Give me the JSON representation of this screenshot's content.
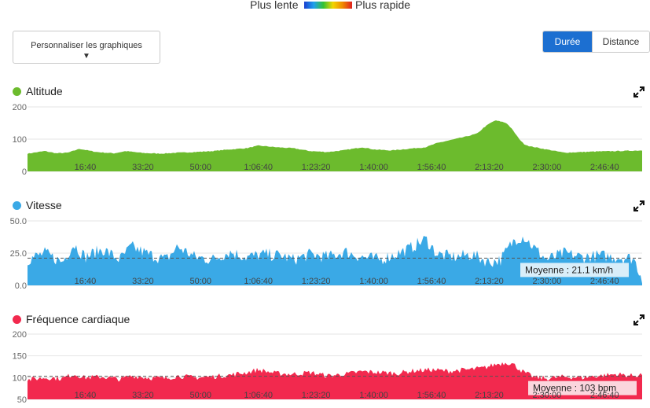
{
  "legend": {
    "slow": "Plus lente",
    "fast": "Plus rapide"
  },
  "customize_button": {
    "label": "Personnaliser les graphiques",
    "arrow": "▼"
  },
  "toggle": {
    "duration": "Durée",
    "distance": "Distance",
    "active": "duration"
  },
  "colors": {
    "altitude": "#6cbb2d",
    "speed": "#3aa9e6",
    "heart_rate": "#f2294e",
    "toggle_active": "#1c6fd1"
  },
  "chart_data": [
    {
      "type": "area",
      "name": "Altitude",
      "x_ticks": [
        "16:40",
        "33:20",
        "50:00",
        "1:06:40",
        "1:23:20",
        "1:40:00",
        "1:56:40",
        "2:13:20",
        "2:30:00",
        "2:46:40"
      ],
      "x_tick_seconds": [
        1000,
        2000,
        3000,
        4000,
        5000,
        6000,
        7000,
        8000,
        9000,
        10000
      ],
      "x_range_seconds": [
        0,
        10650
      ],
      "y_ticks": [
        "0",
        "100",
        "200"
      ],
      "y_tick_values": [
        0,
        100,
        200
      ],
      "ylim": [
        0,
        200
      ],
      "grid": true,
      "x": [
        0,
        300,
        500,
        700,
        900,
        1200,
        1500,
        1700,
        2000,
        2300,
        2600,
        2900,
        3200,
        3500,
        3800,
        4000,
        4300,
        4600,
        4900,
        5200,
        5500,
        5800,
        6000,
        6300,
        6600,
        6900,
        7100,
        7400,
        7600,
        7800,
        7900,
        8000,
        8100,
        8200,
        8300,
        8400,
        8500,
        8600,
        8700,
        9000,
        9300,
        9600,
        9900,
        10200,
        10650
      ],
      "values": [
        55,
        63,
        56,
        58,
        70,
        60,
        56,
        63,
        57,
        55,
        58,
        60,
        63,
        68,
        72,
        80,
        75,
        72,
        63,
        60,
        66,
        75,
        68,
        65,
        70,
        75,
        88,
        100,
        108,
        118,
        135,
        148,
        158,
        155,
        150,
        130,
        105,
        85,
        78,
        68,
        58,
        60,
        62,
        63,
        65
      ]
    },
    {
      "type": "area",
      "name": "Vitesse",
      "x_ticks": [
        "16:40",
        "33:20",
        "50:00",
        "1:06:40",
        "1:23:20",
        "1:40:00",
        "1:56:40",
        "2:13:20",
        "2:30:00",
        "2:46:40"
      ],
      "x_tick_seconds": [
        1000,
        2000,
        3000,
        4000,
        5000,
        6000,
        7000,
        8000,
        9000,
        10000
      ],
      "x_range_seconds": [
        0,
        10650
      ],
      "y_ticks": [
        "0.0",
        "25.0",
        "50.0"
      ],
      "y_tick_values": [
        0,
        25,
        50
      ],
      "ylim": [
        0,
        50
      ],
      "grid": true,
      "average": {
        "value": 21.1,
        "label": "Moyenne : 21.1 km/h"
      },
      "x": [
        0,
        300,
        600,
        800,
        1000,
        1300,
        1600,
        1800,
        2100,
        2400,
        2600,
        2900,
        3200,
        3500,
        3800,
        4100,
        4400,
        4600,
        4900,
        5200,
        5500,
        5800,
        6100,
        6300,
        6600,
        6900,
        7100,
        7400,
        7700,
        8000,
        8200,
        8350,
        8450,
        8600,
        8800,
        9000,
        9300,
        9600,
        9900,
        10200,
        10500,
        10650
      ],
      "values": [
        20,
        25,
        18,
        32,
        22,
        28,
        20,
        30,
        24,
        20,
        30,
        22,
        20,
        26,
        22,
        24,
        23,
        20,
        24,
        22,
        26,
        22,
        20,
        23,
        28,
        36,
        24,
        22,
        24,
        18,
        20,
        30,
        36,
        38,
        28,
        20,
        25,
        22,
        23,
        22,
        21,
        6
      ]
    },
    {
      "type": "area",
      "name": "Fréquence cardiaque",
      "x_ticks": [
        "16:40",
        "33:20",
        "50:00",
        "1:06:40",
        "1:23:20",
        "1:40:00",
        "1:56:40",
        "2:13:20",
        "2:30:00",
        "2:46:40"
      ],
      "x_tick_seconds": [
        1000,
        2000,
        3000,
        4000,
        5000,
        6000,
        7000,
        8000,
        9000,
        10000
      ],
      "x_range_seconds": [
        0,
        10650
      ],
      "y_ticks": [
        "50",
        "100",
        "150",
        "200"
      ],
      "y_tick_values": [
        50,
        100,
        150,
        200
      ],
      "ylim": [
        50,
        200
      ],
      "grid": true,
      "average": {
        "value": 103,
        "label": "Moyenne : 103 bpm"
      },
      "x": [
        0,
        300,
        600,
        800,
        1000,
        1300,
        1600,
        1800,
        2100,
        2400,
        2600,
        2900,
        3200,
        3500,
        3800,
        4000,
        4300,
        4600,
        4900,
        5200,
        5500,
        5800,
        6100,
        6400,
        6700,
        7000,
        7300,
        7600,
        7900,
        8100,
        8300,
        8400,
        8600,
        8800,
        9000,
        9300,
        9600,
        9900,
        10200,
        10500,
        10650
      ],
      "values": [
        95,
        100,
        98,
        108,
        100,
        102,
        96,
        104,
        100,
        98,
        104,
        100,
        102,
        106,
        112,
        118,
        110,
        108,
        112,
        104,
        108,
        114,
        112,
        110,
        116,
        118,
        115,
        118,
        122,
        130,
        135,
        132,
        112,
        100,
        98,
        102,
        100,
        104,
        108,
        104,
        108
      ]
    }
  ]
}
